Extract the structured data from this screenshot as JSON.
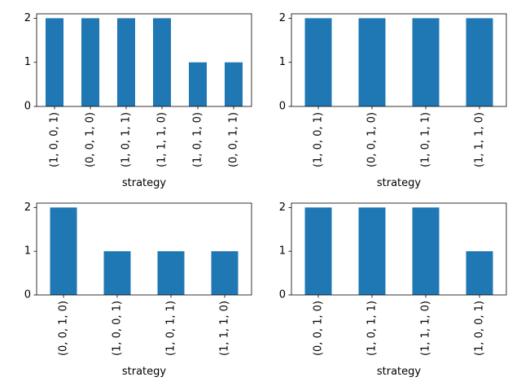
{
  "chart_data": [
    {
      "type": "bar",
      "categories": [
        "(1, 0, 0, 1)",
        "(0, 0, 1, 0)",
        "(1, 0, 1, 1)",
        "(1, 1, 1, 0)",
        "(1, 0, 1, 0)",
        "(0, 0, 1, 1)"
      ],
      "values": [
        2,
        2,
        2,
        2,
        1,
        1
      ],
      "xlabel": "strategy",
      "ylabel": "",
      "ylim": [
        0,
        2.1
      ],
      "yticks": [
        "0",
        "1",
        "2"
      ],
      "bar_color": "#1f77b4"
    },
    {
      "type": "bar",
      "categories": [
        "(1, 0, 0, 1)",
        "(0, 0, 1, 0)",
        "(1, 0, 1, 1)",
        "(1, 1, 1, 0)"
      ],
      "values": [
        2,
        2,
        2,
        2
      ],
      "xlabel": "strategy",
      "ylabel": "",
      "ylim": [
        0,
        2.1
      ],
      "yticks": [
        "0",
        "1",
        "2"
      ],
      "bar_color": "#1f77b4"
    },
    {
      "type": "bar",
      "categories": [
        "(0, 0, 1, 0)",
        "(1, 0, 0, 1)",
        "(1, 0, 1, 1)",
        "(1, 1, 1, 0)"
      ],
      "values": [
        2,
        1,
        1,
        1
      ],
      "xlabel": "strategy",
      "ylabel": "",
      "ylim": [
        0,
        2.1
      ],
      "yticks": [
        "0",
        "1",
        "2"
      ],
      "bar_color": "#1f77b4"
    },
    {
      "type": "bar",
      "categories": [
        "(0, 0, 1, 0)",
        "(1, 0, 1, 1)",
        "(1, 1, 1, 0)",
        "(1, 0, 0, 1)"
      ],
      "values": [
        2,
        2,
        2,
        1
      ],
      "xlabel": "strategy",
      "ylabel": "",
      "ylim": [
        0,
        2.1
      ],
      "yticks": [
        "0",
        "1",
        "2"
      ],
      "bar_color": "#1f77b4"
    }
  ]
}
